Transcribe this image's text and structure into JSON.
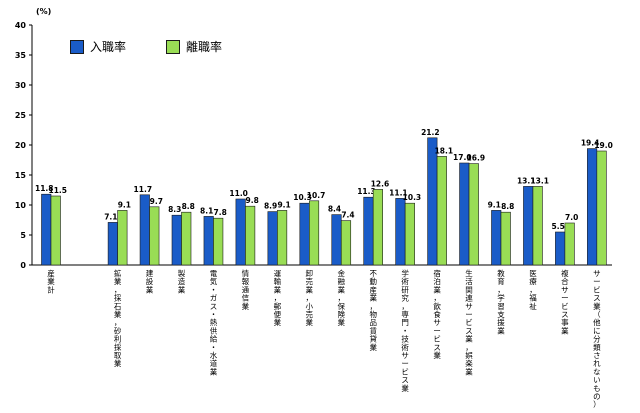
{
  "chart_data": {
    "type": "bar",
    "unit_label": "(%)",
    "ylim": [
      0,
      40
    ],
    "yticks": [
      0,
      5,
      10,
      15,
      20,
      25,
      30,
      35,
      40
    ],
    "grid": false,
    "legend_position": "top-left",
    "categories": [
      "産業計",
      "鉱業，採石業，砂利採取業",
      "建設業",
      "製造業",
      "電気・ガス・熱供給・水道業",
      "情報通信業",
      "運輸業，郵便業",
      "卸売業，小売業",
      "金融業，保険業",
      "不動産業，物品賃貸業",
      "学術研究，専門・技術サービス業",
      "宿泊業，飲食サービス業",
      "生活関連サービス業，娯楽業",
      "教育，学習支援業",
      "医療，福祉",
      "複合サービス事業",
      "サービス業（他に分類されないもの）"
    ],
    "series": [
      {
        "name": "入職率",
        "color": "#1a5cc8",
        "values": [
          11.8,
          7.1,
          11.7,
          8.3,
          8.1,
          11.0,
          8.9,
          10.3,
          8.4,
          11.3,
          11.1,
          21.2,
          17.0,
          9.1,
          13.1,
          5.5,
          19.4
        ],
        "labels": [
          "11.8",
          "7.1",
          "11.7",
          "8.3",
          "8.1",
          "11.0",
          "8.9",
          "10.3",
          "8.4",
          "11.3",
          "11.1",
          "21.2",
          "17.0",
          "9.1",
          "13.1",
          "5.5",
          "19.4"
        ]
      },
      {
        "name": "離職率",
        "color": "#99dd55",
        "values": [
          11.5,
          9.1,
          9.7,
          8.8,
          7.8,
          9.8,
          9.1,
          10.7,
          7.4,
          12.6,
          10.3,
          18.1,
          16.9,
          8.8,
          13.1,
          7.0,
          19.0
        ],
        "labels": [
          "11.5",
          "9.1",
          "9.7",
          "8.8",
          "7.8",
          "9.8",
          "9.1",
          "10.7",
          "7.4",
          "12.6",
          "10.3",
          "18.1",
          "16.9",
          "8.8",
          "13.1",
          "7.0",
          "19.0"
        ]
      }
    ]
  }
}
